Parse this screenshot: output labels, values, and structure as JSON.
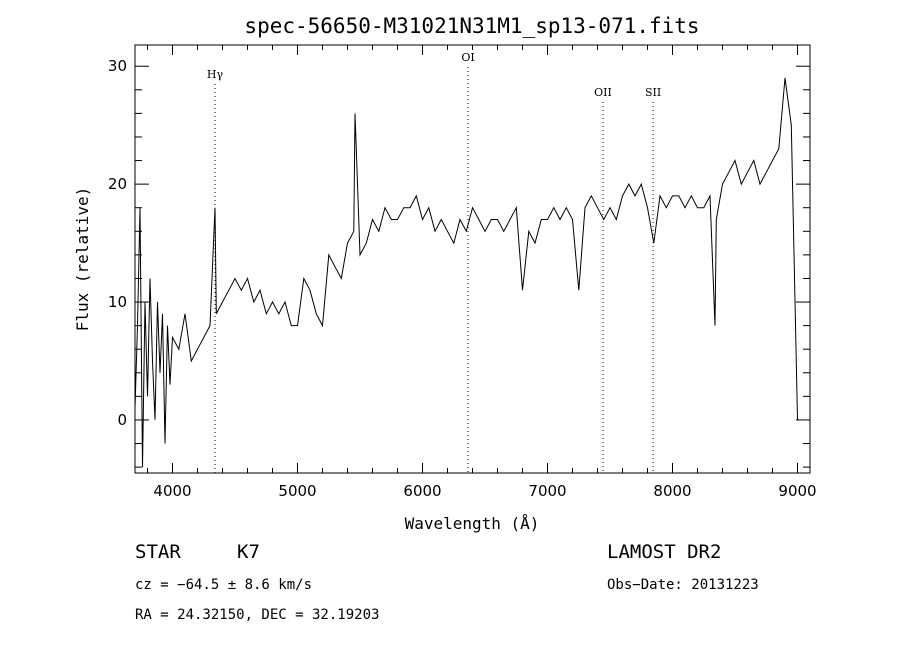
{
  "chart_data": {
    "type": "line",
    "title": "spec-56650-M31021N31M1_sp13-071.fits",
    "xlabel": "Wavelength (Å)",
    "ylabel": "Flux (relative)",
    "xlim": [
      3700,
      9100
    ],
    "ylim": [
      -4.5,
      31.8
    ],
    "x_ticks": [
      {
        "value": 4000,
        "label": "4000"
      },
      {
        "value": 5000,
        "label": "5000"
      },
      {
        "value": 6000,
        "label": "6000"
      },
      {
        "value": 7000,
        "label": "7000"
      },
      {
        "value": 8000,
        "label": "8000"
      },
      {
        "value": 9000,
        "label": "9000"
      }
    ],
    "y_ticks": [
      {
        "value": 0,
        "label": "0"
      },
      {
        "value": 10,
        "label": "10"
      },
      {
        "value": 20,
        "label": "20"
      },
      {
        "value": 30,
        "label": "30"
      }
    ],
    "lines": [
      {
        "label": "Hγ",
        "x": 4340
      },
      {
        "label": "OI",
        "x": 6364
      },
      {
        "label": "OII",
        "x": 7444
      },
      {
        "label": "SII",
        "x": 7845
      }
    ],
    "series": [
      {
        "x": [
          3700,
          3720,
          3740,
          3760,
          3780,
          3800,
          3820,
          3840,
          3860,
          3880,
          3900,
          3920,
          3940,
          3960,
          3980,
          4000,
          4050,
          4100,
          4150,
          4200,
          4250,
          4300,
          4340,
          4350,
          4400,
          4450,
          4500,
          4550,
          4600,
          4650,
          4700,
          4750,
          4800,
          4850,
          4900,
          4950,
          5000,
          5050,
          5100,
          5150,
          5200,
          5250,
          5300,
          5350,
          5400,
          5450,
          5460,
          5500,
          5550,
          5600,
          5650,
          5700,
          5750,
          5800,
          5850,
          5900,
          5950,
          6000,
          6050,
          6100,
          6150,
          6200,
          6250,
          6300,
          6350,
          6400,
          6450,
          6500,
          6550,
          6600,
          6650,
          6700,
          6750,
          6800,
          6850,
          6900,
          6950,
          7000,
          7050,
          7100,
          7150,
          7200,
          7250,
          7300,
          7350,
          7400,
          7450,
          7500,
          7550,
          7600,
          7650,
          7700,
          7750,
          7800,
          7850,
          7900,
          7950,
          8000,
          8050,
          8100,
          8150,
          8200,
          8250,
          8300,
          8340,
          8350,
          8400,
          8450,
          8500,
          8550,
          8600,
          8650,
          8700,
          8750,
          8800,
          8850,
          8900,
          8950,
          9000
        ],
        "values": [
          1,
          8,
          18,
          -4,
          10,
          2,
          12,
          5,
          0,
          10,
          4,
          9,
          -2,
          8,
          3,
          7,
          6,
          9,
          5,
          6,
          7,
          8,
          18,
          9,
          10,
          11,
          12,
          11,
          12,
          10,
          11,
          9,
          10,
          9,
          10,
          8,
          8,
          12,
          11,
          9,
          8,
          14,
          13,
          12,
          15,
          16,
          26,
          14,
          15,
          17,
          16,
          18,
          17,
          17,
          18,
          18,
          19,
          17,
          18,
          16,
          17,
          16,
          15,
          17,
          16,
          18,
          17,
          16,
          17,
          17,
          16,
          17,
          18,
          11,
          16,
          15,
          17,
          17,
          18,
          17,
          18,
          17,
          11,
          18,
          19,
          18,
          17,
          18,
          17,
          19,
          20,
          19,
          20,
          18,
          15,
          19,
          18,
          19,
          19,
          18,
          19,
          18,
          18,
          19,
          8,
          17,
          20,
          21,
          22,
          20,
          21,
          22,
          20,
          21,
          22,
          23,
          29,
          25,
          0
        ]
      }
    ]
  },
  "info": {
    "class": "STAR",
    "subclass": "K7",
    "survey": "LAMOST DR2",
    "cz": "cz = −64.5 ± 8.6 km/s",
    "obs_date": "Obs−Date: 20131223",
    "coords": "RA =  24.32150, DEC =  32.19203"
  }
}
